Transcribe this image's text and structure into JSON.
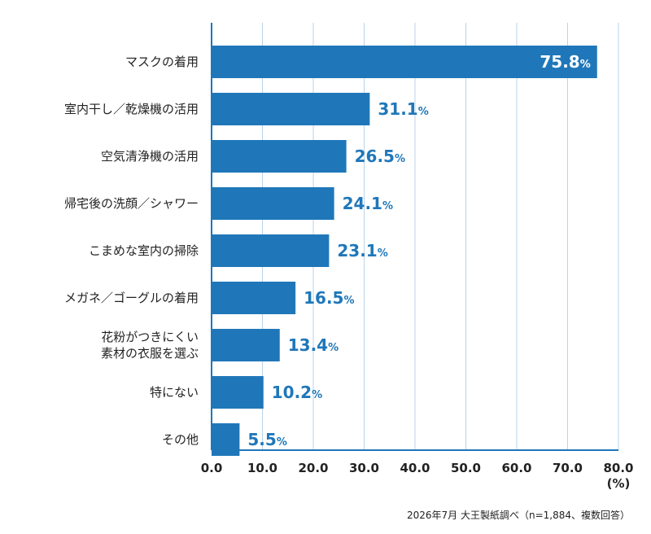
{
  "chart_data": {
    "type": "bar",
    "orientation": "horizontal",
    "categories": [
      [
        "マスクの着用"
      ],
      [
        "室内干し／乾燥機の活用"
      ],
      [
        "空気清浄機の活用"
      ],
      [
        "帰宅後の洗顔／シャワー"
      ],
      [
        "こまめな室内の掃除"
      ],
      [
        "メガネ／ゴーグルの着用"
      ],
      [
        "花粉がつきにくい",
        "素材の衣服を選ぶ"
      ],
      [
        "特にない"
      ],
      [
        "その他"
      ]
    ],
    "values": [
      75.8,
      31.1,
      26.5,
      24.1,
      23.1,
      16.5,
      13.4,
      10.2,
      5.5
    ],
    "value_labels": [
      "75.8",
      "31.1",
      "26.5",
      "24.1",
      "23.1",
      "16.5",
      "13.4",
      "10.2",
      "5.5"
    ],
    "value_suffix": "%",
    "xlim": [
      0,
      80
    ],
    "xticks": [
      "0.0",
      "10.0",
      "20.0",
      "30.0",
      "40.0",
      "50.0",
      "60.0",
      "70.0",
      "80.0"
    ],
    "xunit": "(%)",
    "grid": true,
    "colors": {
      "bar": "#1f77b9",
      "grid": "#b9d3e8",
      "axis": "#1f77b9",
      "label_outside": "#1f77b9",
      "label_inside": "#ffffff"
    }
  },
  "note": "2026年7月 大王製紙調べ（n=1,884、複数回答）"
}
